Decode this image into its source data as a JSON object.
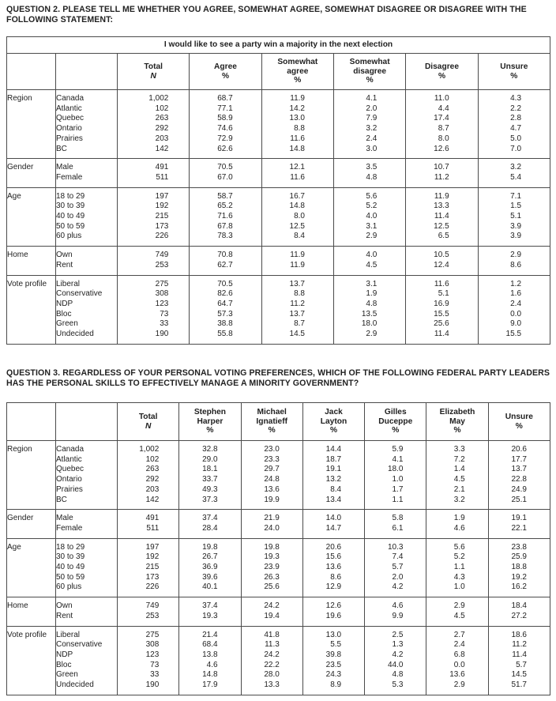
{
  "questions": [
    {
      "heading": "QUESTION 2. PLEASE TELL ME WHETHER YOU AGREE, SOMEWHAT AGREE, SOMEWHAT DISAGREE OR DISAGREE WITH THE\nFOLLOWING STATEMENT:",
      "table": {
        "span_title": "I would like to see a party win a majority in the next election",
        "columns": [
          {
            "lines": [
              "Total"
            ],
            "unit": "N"
          },
          {
            "lines": [
              "Agree"
            ],
            "unit": "%"
          },
          {
            "lines": [
              "Somewhat",
              "agree"
            ],
            "unit": "%"
          },
          {
            "lines": [
              "Somewhat",
              "disagree"
            ],
            "unit": "%"
          },
          {
            "lines": [
              "Disagree"
            ],
            "unit": "%"
          },
          {
            "lines": [
              "Unsure"
            ],
            "unit": "%"
          }
        ],
        "sections": [
          {
            "group": "Region",
            "rows": [
              [
                "Canada",
                "1,002",
                "68.7",
                "11.9",
                "4.1",
                "11.0",
                "4.3"
              ],
              [
                "Atlantic",
                "102",
                "77.1",
                "14.2",
                "2.0",
                "4.4",
                "2.2"
              ],
              [
                "Quebec",
                "263",
                "58.9",
                "13.0",
                "7.9",
                "17.4",
                "2.8"
              ],
              [
                "Ontario",
                "292",
                "74.6",
                "8.8",
                "3.2",
                "8.7",
                "4.7"
              ],
              [
                "Prairies",
                "203",
                "72.9",
                "11.6",
                "2.4",
                "8.0",
                "5.0"
              ],
              [
                "BC",
                "142",
                "62.6",
                "14.8",
                "3.0",
                "12.6",
                "7.0"
              ]
            ]
          },
          {
            "group": "Gender",
            "rows": [
              [
                "Male",
                "491",
                "70.5",
                "12.1",
                "3.5",
                "10.7",
                "3.2"
              ],
              [
                "Female",
                "511",
                "67.0",
                "11.6",
                "4.8",
                "11.2",
                "5.4"
              ]
            ]
          },
          {
            "group": "Age",
            "rows": [
              [
                "18 to 29",
                "197",
                "58.7",
                "16.7",
                "5.6",
                "11.9",
                "7.1"
              ],
              [
                "30 to 39",
                "192",
                "65.2",
                "14.8",
                "5.2",
                "13.3",
                "1.5"
              ],
              [
                "40 to 49",
                "215",
                "71.6",
                "8.0",
                "4.0",
                "11.4",
                "5.1"
              ],
              [
                "50 to 59",
                "173",
                "67.8",
                "12.5",
                "3.1",
                "12.5",
                "3.9"
              ],
              [
                "60 plus",
                "226",
                "78.3",
                "8.4",
                "2.9",
                "6.5",
                "3.9"
              ]
            ]
          },
          {
            "group": "Home",
            "rows": [
              [
                "Own",
                "749",
                "70.8",
                "11.9",
                "4.0",
                "10.5",
                "2.9"
              ],
              [
                "Rent",
                "253",
                "62.7",
                "11.9",
                "4.5",
                "12.4",
                "8.6"
              ]
            ]
          },
          {
            "group": "Vote profile",
            "rows": [
              [
                "Liberal",
                "275",
                "70.5",
                "13.7",
                "3.1",
                "11.6",
                "1.2"
              ],
              [
                "Conservative",
                "308",
                "82.6",
                "8.8",
                "1.9",
                "5.1",
                "1.6"
              ],
              [
                "NDP",
                "123",
                "64.7",
                "11.2",
                "4.8",
                "16.9",
                "2.4"
              ],
              [
                "Bloc",
                "73",
                "57.3",
                "13.7",
                "13.5",
                "15.5",
                "0.0"
              ],
              [
                "Green",
                "33",
                "38.8",
                "8.7",
                "18.0",
                "25.6",
                "9.0"
              ],
              [
                "Undecided",
                "190",
                "55.8",
                "14.5",
                "2.9",
                "11.4",
                "15.5"
              ]
            ]
          }
        ]
      }
    },
    {
      "heading": "QUESTION 3. REGARDLESS OF YOUR PERSONAL VOTING PREFERENCES, WHICH OF THE FOLLOWING FEDERAL PARTY LEADERS\nHAS THE PERSONAL SKILLS TO EFFECTIVELY MANAGE A MINORITY GOVERNMENT?",
      "table": {
        "span_title": null,
        "columns": [
          {
            "lines": [
              "Total"
            ],
            "unit": "N"
          },
          {
            "lines": [
              "Stephen",
              "Harper"
            ],
            "unit": "%"
          },
          {
            "lines": [
              "Michael",
              "Ignatieff"
            ],
            "unit": "%"
          },
          {
            "lines": [
              "Jack",
              "Layton"
            ],
            "unit": "%"
          },
          {
            "lines": [
              "Gilles",
              "Duceppe"
            ],
            "unit": "%"
          },
          {
            "lines": [
              "Elizabeth",
              "May"
            ],
            "unit": "%"
          },
          {
            "lines": [
              "Unsure"
            ],
            "unit": "%"
          }
        ],
        "sections": [
          {
            "group": "Region",
            "rows": [
              [
                "Canada",
                "1,002",
                "32.8",
                "23.0",
                "14.4",
                "5.9",
                "3.3",
                "20.6"
              ],
              [
                "Atlantic",
                "102",
                "29.0",
                "23.3",
                "18.7",
                "4.1",
                "7.2",
                "17.7"
              ],
              [
                "Quebec",
                "263",
                "18.1",
                "29.7",
                "19.1",
                "18.0",
                "1.4",
                "13.7"
              ],
              [
                "Ontario",
                "292",
                "33.7",
                "24.8",
                "13.2",
                "1.0",
                "4.5",
                "22.8"
              ],
              [
                "Prairies",
                "203",
                "49.3",
                "13.6",
                "8.4",
                "1.7",
                "2.1",
                "24.9"
              ],
              [
                "BC",
                "142",
                "37.3",
                "19.9",
                "13.4",
                "1.1",
                "3.2",
                "25.1"
              ]
            ]
          },
          {
            "group": "Gender",
            "rows": [
              [
                "Male",
                "491",
                "37.4",
                "21.9",
                "14.0",
                "5.8",
                "1.9",
                "19.1"
              ],
              [
                "Female",
                "511",
                "28.4",
                "24.0",
                "14.7",
                "6.1",
                "4.6",
                "22.1"
              ]
            ]
          },
          {
            "group": "Age",
            "rows": [
              [
                "18 to 29",
                "197",
                "19.8",
                "19.8",
                "20.6",
                "10.3",
                "5.6",
                "23.8"
              ],
              [
                "30 to 39",
                "192",
                "26.7",
                "19.3",
                "15.6",
                "7.4",
                "5.2",
                "25.9"
              ],
              [
                "40 to 49",
                "215",
                "36.9",
                "23.9",
                "13.6",
                "5.7",
                "1.1",
                "18.8"
              ],
              [
                "50 to 59",
                "173",
                "39.6",
                "26.3",
                "8.6",
                "2.0",
                "4.3",
                "19.2"
              ],
              [
                "60 plus",
                "226",
                "40.1",
                "25.6",
                "12.9",
                "4.2",
                "1.0",
                "16.2"
              ]
            ]
          },
          {
            "group": "Home",
            "rows": [
              [
                "Own",
                "749",
                "37.4",
                "24.2",
                "12.6",
                "4.6",
                "2.9",
                "18.4"
              ],
              [
                "Rent",
                "253",
                "19.3",
                "19.4",
                "19.6",
                "9.9",
                "4.5",
                "27.2"
              ]
            ]
          },
          {
            "group": "Vote profile",
            "rows": [
              [
                "Liberal",
                "275",
                "21.4",
                "41.8",
                "13.0",
                "2.5",
                "2.7",
                "18.6"
              ],
              [
                "Conservative",
                "308",
                "68.4",
                "11.3",
                "5.5",
                "1.3",
                "2.4",
                "11.2"
              ],
              [
                "NDP",
                "123",
                "13.8",
                "24.2",
                "39.8",
                "4.2",
                "6.8",
                "11.4"
              ],
              [
                "Bloc",
                "73",
                "4.6",
                "22.2",
                "23.5",
                "44.0",
                "0.0",
                "5.7"
              ],
              [
                "Green",
                "33",
                "14.8",
                "28.0",
                "24.3",
                "4.8",
                "13.6",
                "14.5"
              ],
              [
                "Undecided",
                "190",
                "17.9",
                "13.3",
                "8.9",
                "5.3",
                "2.9",
                "51.7"
              ]
            ]
          }
        ]
      }
    }
  ],
  "layout_colors": {
    "text": "#1f1f1f",
    "border": "#4b4b4b",
    "background": "#ffffff"
  }
}
